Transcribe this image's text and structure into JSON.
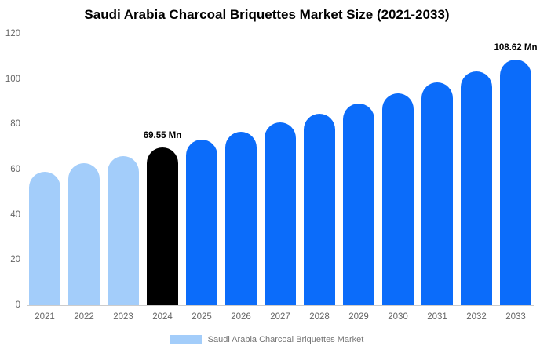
{
  "title": "Saudi Arabia Charcoal Briquettes Market Size (2021-2033)",
  "legend": {
    "label": "Saudi Arabia Charcoal Briquettes Market",
    "swatch_color": "#A3CDFA"
  },
  "colors": {
    "historical": "#A3CDFA",
    "base_year": "#000000",
    "forecast": "#0B6CFA",
    "axis_line": "#CCCCCC",
    "tick_text": "#666666",
    "legend_text": "#757575",
    "title_text": "#000000"
  },
  "chart_data": {
    "type": "bar",
    "title": "Saudi Arabia Charcoal Briquettes Market Size (2021-2033)",
    "unit": "Mn",
    "categories": [
      "2021",
      "2022",
      "2023",
      "2024",
      "2025",
      "2026",
      "2027",
      "2028",
      "2029",
      "2030",
      "2031",
      "2032",
      "2033"
    ],
    "values": [
      58.9,
      62.7,
      65.8,
      69.55,
      73.08,
      76.79,
      80.69,
      84.79,
      89.1,
      93.62,
      98.37,
      103.37,
      108.62
    ],
    "bar_roles": [
      "historical",
      "historical",
      "historical",
      "base_year",
      "forecast",
      "forecast",
      "forecast",
      "forecast",
      "forecast",
      "forecast",
      "forecast",
      "forecast",
      "forecast"
    ],
    "labeled_points": [
      {
        "category": "2024",
        "text": "69.55 Mn"
      },
      {
        "category": "2033",
        "text": "108.62 Mn"
      }
    ],
    "xlabel": "",
    "ylabel": "",
    "ylim": [
      0,
      120
    ],
    "yticks": [
      0,
      20,
      40,
      60,
      80,
      100,
      120
    ],
    "grid": false,
    "legend_position": "bottom",
    "legend_entries": [
      "Saudi Arabia Charcoal Briquettes Market"
    ]
  }
}
